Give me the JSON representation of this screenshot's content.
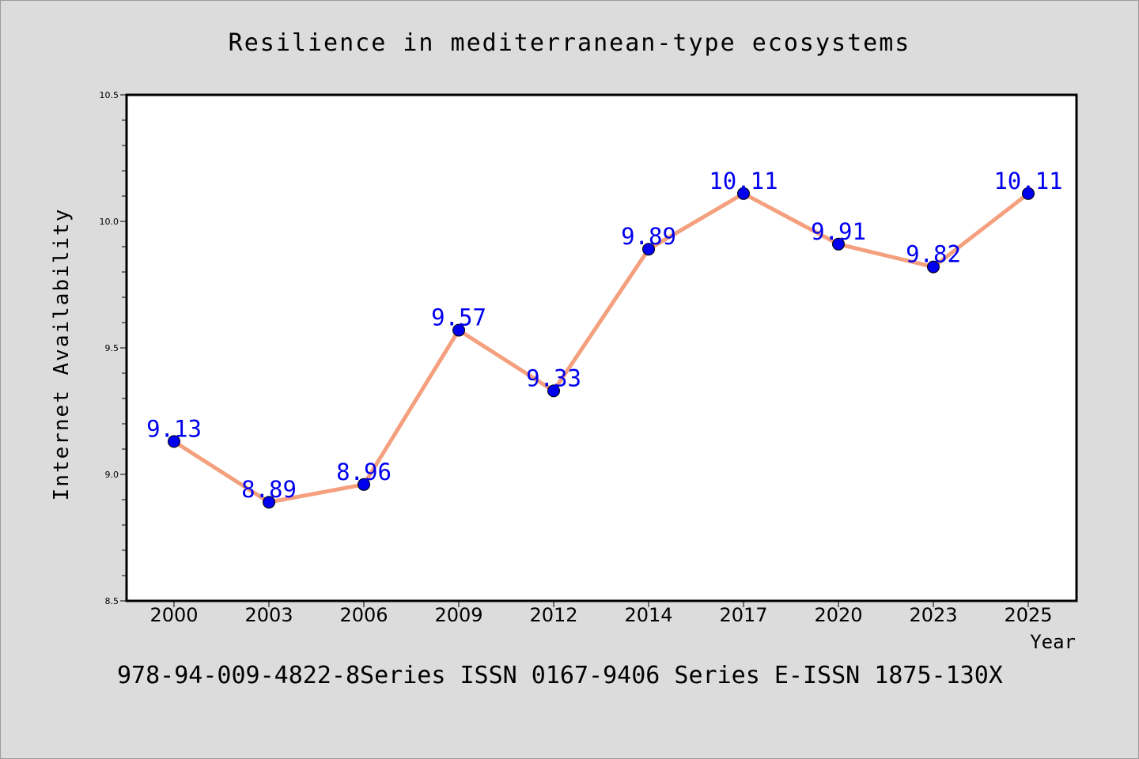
{
  "chart_data": {
    "type": "line",
    "title": "Resilience in mediterranean-type ecosystems",
    "xlabel": "Year",
    "ylabel": "Internet Availability",
    "categories": [
      "2000",
      "2003",
      "2006",
      "2009",
      "2012",
      "2014",
      "2017",
      "2020",
      "2023",
      "2025"
    ],
    "series": [
      {
        "values": [
          9.13,
          8.89,
          8.96,
          9.57,
          9.33,
          9.89,
          10.11,
          9.91,
          9.82,
          10.11
        ],
        "line_color": "#f4a07e",
        "marker_color": "#0000ee"
      }
    ],
    "data_labels": [
      "9.13",
      "8.89",
      "8.96",
      "9.57",
      "9.33",
      "9.89",
      "10.11",
      "9.91",
      "9.82",
      "10.11"
    ],
    "ylim": [
      8.5,
      10.5
    ],
    "yticks": [
      "8.5",
      "9.0",
      "9.5",
      "10.0",
      "10.5"
    ],
    "grid": false,
    "footer": "978-94-009-4822-8Series ISSN 0167-9406 Series E-ISSN 1875-130X",
    "colors": {
      "background": "#dcdcdc",
      "plot_background": "#ffffff",
      "axis": "#000000",
      "label_text": "#0000ee"
    }
  }
}
